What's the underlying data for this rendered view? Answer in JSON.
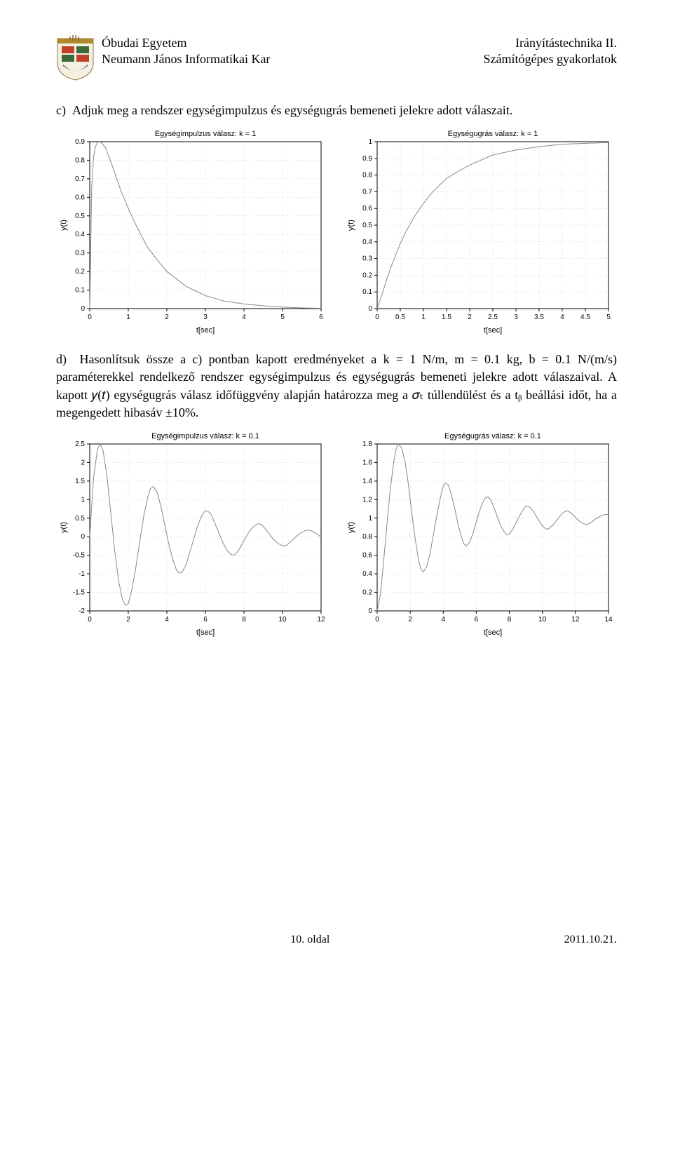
{
  "header": {
    "left_line1": "Óbudai Egyetem",
    "left_line2": "Neumann János Informatikai Kar",
    "right_line1": "Irányítástechnika II.",
    "right_line2": "Számítógépes gyakorlatok"
  },
  "text_c": "c)  Adjuk meg a rendszer egységimpulzus és egységugrás bemeneti jelekre adott válaszait.",
  "text_d": "d)  Hasonlítsuk össze a c) pontban kapott eredményeket a k = 1 N/m, m = 0.1 kg, b = 0.1 N/(m/s) paraméterekkel rendelkező rendszer egységimpulzus és egységugrás bemeneti jelekre adott válaszaival. A kapott 𝑦(𝑡) egységugrás válasz időfüggvény alapján határozza meg a 𝜎ₜ túllendülést és a tᵦ beállási időt, ha a megengedett hibasáv ±10%.",
  "footer": {
    "center": "10. oldal",
    "right": "2011.10.21."
  },
  "colors": {
    "grid": "#c0c0c0",
    "frame": "#000000",
    "line": "#888888",
    "text": "#000000",
    "bg": "#ffffff"
  },
  "chart1": {
    "title": "Egységimpulzus válasz: k = 1",
    "xlabel": "t[sec]",
    "ylabel": "y(t)",
    "xlim": [
      0,
      6
    ],
    "xticks": [
      0,
      1,
      2,
      3,
      4,
      5,
      6
    ],
    "ylim": [
      0,
      0.9
    ],
    "yticks": [
      0,
      0.1,
      0.2,
      0.3,
      0.4,
      0.5,
      0.6,
      0.7,
      0.8,
      0.9
    ],
    "type": "line",
    "data": [
      [
        0,
        0
      ],
      [
        0.05,
        0.65
      ],
      [
        0.1,
        0.82
      ],
      [
        0.15,
        0.875
      ],
      [
        0.2,
        0.895
      ],
      [
        0.25,
        0.9
      ],
      [
        0.3,
        0.895
      ],
      [
        0.4,
        0.87
      ],
      [
        0.5,
        0.82
      ],
      [
        0.6,
        0.76
      ],
      [
        0.8,
        0.64
      ],
      [
        1.0,
        0.54
      ],
      [
        1.2,
        0.45
      ],
      [
        1.5,
        0.33
      ],
      [
        1.8,
        0.25
      ],
      [
        2.0,
        0.2
      ],
      [
        2.5,
        0.12
      ],
      [
        3.0,
        0.07
      ],
      [
        3.5,
        0.04
      ],
      [
        4.0,
        0.025
      ],
      [
        4.5,
        0.015
      ],
      [
        5.0,
        0.008
      ],
      [
        5.5,
        0.004
      ],
      [
        6.0,
        0.002
      ]
    ]
  },
  "chart2": {
    "title": "Egységugrás válasz: k = 1",
    "xlabel": "t[sec]",
    "ylabel": "y(t)",
    "xlim": [
      0,
      5
    ],
    "xticks": [
      0,
      0.5,
      1,
      1.5,
      2,
      2.5,
      3,
      3.5,
      4,
      4.5,
      5
    ],
    "ylim": [
      0,
      1
    ],
    "yticks": [
      0,
      0.1,
      0.2,
      0.3,
      0.4,
      0.5,
      0.6,
      0.7,
      0.8,
      0.9,
      1
    ],
    "type": "line",
    "data": [
      [
        0,
        0
      ],
      [
        0.1,
        0.08
      ],
      [
        0.2,
        0.17
      ],
      [
        0.3,
        0.25
      ],
      [
        0.4,
        0.32
      ],
      [
        0.5,
        0.39
      ],
      [
        0.6,
        0.45
      ],
      [
        0.8,
        0.55
      ],
      [
        1.0,
        0.63
      ],
      [
        1.2,
        0.7
      ],
      [
        1.5,
        0.78
      ],
      [
        1.8,
        0.83
      ],
      [
        2.0,
        0.86
      ],
      [
        2.5,
        0.92
      ],
      [
        3.0,
        0.95
      ],
      [
        3.5,
        0.97
      ],
      [
        4.0,
        0.985
      ],
      [
        4.5,
        0.99
      ],
      [
        5.0,
        0.995
      ]
    ]
  },
  "chart3": {
    "title": "Egységimpulzus válasz: k = 0.1",
    "xlabel": "t[sec]",
    "ylabel": "y(t)",
    "xlim": [
      0,
      12
    ],
    "xticks": [
      0,
      2,
      4,
      6,
      8,
      10,
      12
    ],
    "ylim": [
      -2,
      2.5
    ],
    "yticks": [
      -2,
      -1.5,
      -1,
      -0.5,
      0,
      0.5,
      1,
      1.5,
      2,
      2.5
    ],
    "type": "line",
    "data": [
      [
        0,
        0
      ],
      [
        0.2,
        1.6
      ],
      [
        0.4,
        2.35
      ],
      [
        0.55,
        2.5
      ],
      [
        0.7,
        2.3
      ],
      [
        0.9,
        1.6
      ],
      [
        1.1,
        0.6
      ],
      [
        1.3,
        -0.4
      ],
      [
        1.5,
        -1.2
      ],
      [
        1.7,
        -1.7
      ],
      [
        1.85,
        -1.85
      ],
      [
        2.0,
        -1.8
      ],
      [
        2.2,
        -1.4
      ],
      [
        2.4,
        -0.8
      ],
      [
        2.6,
        -0.1
      ],
      [
        2.8,
        0.55
      ],
      [
        3.0,
        1.05
      ],
      [
        3.15,
        1.3
      ],
      [
        3.3,
        1.35
      ],
      [
        3.5,
        1.2
      ],
      [
        3.7,
        0.8
      ],
      [
        3.9,
        0.3
      ],
      [
        4.1,
        -0.2
      ],
      [
        4.3,
        -0.6
      ],
      [
        4.5,
        -0.9
      ],
      [
        4.65,
        -0.98
      ],
      [
        4.8,
        -0.95
      ],
      [
        5.0,
        -0.75
      ],
      [
        5.2,
        -0.4
      ],
      [
        5.4,
        -0.05
      ],
      [
        5.6,
        0.3
      ],
      [
        5.8,
        0.55
      ],
      [
        5.95,
        0.68
      ],
      [
        6.1,
        0.7
      ],
      [
        6.3,
        0.6
      ],
      [
        6.5,
        0.35
      ],
      [
        6.7,
        0.1
      ],
      [
        6.9,
        -0.15
      ],
      [
        7.1,
        -0.35
      ],
      [
        7.3,
        -0.47
      ],
      [
        7.45,
        -0.5
      ],
      [
        7.6,
        -0.45
      ],
      [
        7.8,
        -0.3
      ],
      [
        8.0,
        -0.1
      ],
      [
        8.2,
        0.08
      ],
      [
        8.4,
        0.22
      ],
      [
        8.6,
        0.32
      ],
      [
        8.75,
        0.35
      ],
      [
        8.9,
        0.33
      ],
      [
        9.1,
        0.22
      ],
      [
        9.3,
        0.08
      ],
      [
        9.5,
        -0.05
      ],
      [
        9.7,
        -0.15
      ],
      [
        9.9,
        -0.22
      ],
      [
        10.05,
        -0.25
      ],
      [
        10.2,
        -0.23
      ],
      [
        10.4,
        -0.15
      ],
      [
        10.6,
        -0.05
      ],
      [
        10.8,
        0.05
      ],
      [
        11.0,
        0.12
      ],
      [
        11.2,
        0.17
      ],
      [
        11.35,
        0.18
      ],
      [
        11.5,
        0.16
      ],
      [
        11.7,
        0.1
      ],
      [
        11.9,
        0.03
      ],
      [
        12,
        0
      ]
    ]
  },
  "chart4": {
    "title": "Egységugrás válasz: k = 0.1",
    "xlabel": "t[sec]",
    "ylabel": "y(t)",
    "xlim": [
      0,
      14
    ],
    "xticks": [
      0,
      2,
      4,
      6,
      8,
      10,
      12,
      14
    ],
    "ylim": [
      0,
      1.8
    ],
    "yticks": [
      0,
      0.2,
      0.4,
      0.6,
      0.8,
      1,
      1.2,
      1.4,
      1.6,
      1.8
    ],
    "type": "line",
    "data": [
      [
        0,
        0
      ],
      [
        0.2,
        0.18
      ],
      [
        0.4,
        0.55
      ],
      [
        0.6,
        0.95
      ],
      [
        0.8,
        1.32
      ],
      [
        1.0,
        1.6
      ],
      [
        1.15,
        1.75
      ],
      [
        1.3,
        1.8
      ],
      [
        1.5,
        1.75
      ],
      [
        1.7,
        1.6
      ],
      [
        1.9,
        1.35
      ],
      [
        2.1,
        1.05
      ],
      [
        2.3,
        0.78
      ],
      [
        2.5,
        0.55
      ],
      [
        2.65,
        0.45
      ],
      [
        2.8,
        0.42
      ],
      [
        3.0,
        0.48
      ],
      [
        3.2,
        0.62
      ],
      [
        3.4,
        0.82
      ],
      [
        3.6,
        1.02
      ],
      [
        3.8,
        1.2
      ],
      [
        3.95,
        1.32
      ],
      [
        4.1,
        1.38
      ],
      [
        4.3,
        1.36
      ],
      [
        4.5,
        1.25
      ],
      [
        4.7,
        1.1
      ],
      [
        4.9,
        0.93
      ],
      [
        5.1,
        0.8
      ],
      [
        5.25,
        0.72
      ],
      [
        5.4,
        0.7
      ],
      [
        5.6,
        0.74
      ],
      [
        5.8,
        0.84
      ],
      [
        6.0,
        0.96
      ],
      [
        6.2,
        1.08
      ],
      [
        6.4,
        1.17
      ],
      [
        6.55,
        1.22
      ],
      [
        6.7,
        1.23
      ],
      [
        6.9,
        1.19
      ],
      [
        7.1,
        1.1
      ],
      [
        7.3,
        1.0
      ],
      [
        7.5,
        0.91
      ],
      [
        7.7,
        0.85
      ],
      [
        7.85,
        0.82
      ],
      [
        8.0,
        0.83
      ],
      [
        8.2,
        0.88
      ],
      [
        8.4,
        0.95
      ],
      [
        8.6,
        1.02
      ],
      [
        8.8,
        1.08
      ],
      [
        8.95,
        1.12
      ],
      [
        9.1,
        1.13
      ],
      [
        9.3,
        1.11
      ],
      [
        9.5,
        1.06
      ],
      [
        9.7,
        1.0
      ],
      [
        9.9,
        0.94
      ],
      [
        10.1,
        0.9
      ],
      [
        10.25,
        0.88
      ],
      [
        10.4,
        0.89
      ],
      [
        10.6,
        0.92
      ],
      [
        10.8,
        0.96
      ],
      [
        11.0,
        1.01
      ],
      [
        11.2,
        1.05
      ],
      [
        11.35,
        1.07
      ],
      [
        11.5,
        1.08
      ],
      [
        11.7,
        1.06
      ],
      [
        11.9,
        1.03
      ],
      [
        12.1,
        0.99
      ],
      [
        12.3,
        0.96
      ],
      [
        12.5,
        0.94
      ],
      [
        12.65,
        0.93
      ],
      [
        12.8,
        0.94
      ],
      [
        13.0,
        0.96
      ],
      [
        13.2,
        0.99
      ],
      [
        13.4,
        1.01
      ],
      [
        13.6,
        1.03
      ],
      [
        13.8,
        1.04
      ],
      [
        14,
        1.04
      ]
    ]
  }
}
